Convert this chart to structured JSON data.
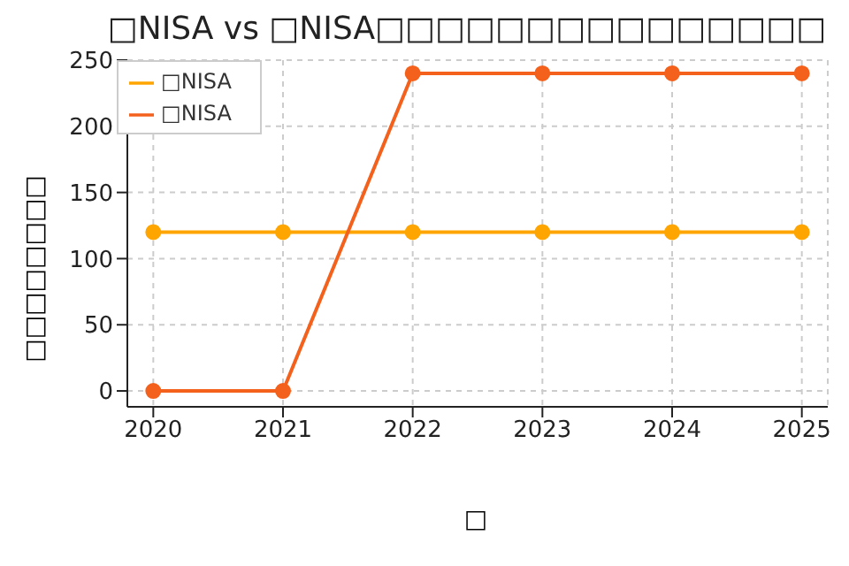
{
  "chart_data": {
    "type": "line",
    "title": "□NISA vs □NISA□□□□□□□□□□□□□□□",
    "xlabel": "□",
    "ylabel": "□□□□□□□□",
    "x": [
      2020,
      2021,
      2022,
      2023,
      2024,
      2025
    ],
    "series": [
      {
        "name": "□NISA",
        "color": "#ffa500",
        "values": [
          120,
          120,
          120,
          120,
          120,
          120
        ]
      },
      {
        "name": "□NISA",
        "color": "#f4611c",
        "values": [
          0,
          0,
          240,
          240,
          240,
          240
        ]
      }
    ],
    "xlim": [
      2019.8,
      2025.2
    ],
    "xticks": [
      2020,
      2021,
      2022,
      2023,
      2024,
      2025
    ],
    "ylim": [
      -12,
      250
    ],
    "yticks": [
      0,
      50,
      100,
      150,
      200,
      250
    ],
    "grid": true,
    "legend": "top left",
    "marker": "circle",
    "line_style": "solid"
  }
}
